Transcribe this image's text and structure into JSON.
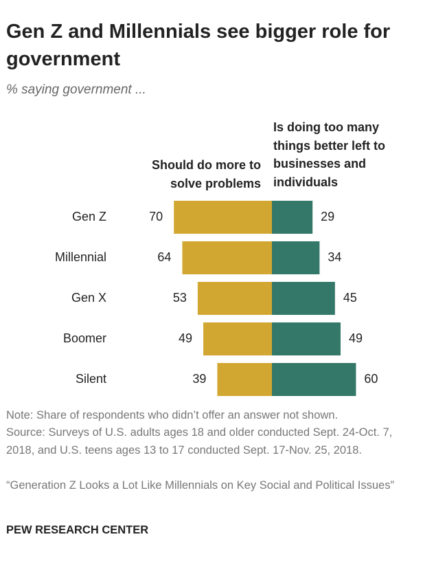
{
  "chart_data": {
    "type": "diverging_bar",
    "title": "Gen Z and Millennials see bigger role for government",
    "subtitle": "% saying government ...",
    "categories": [
      "Gen Z",
      "Millennial",
      "Gen X",
      "Boomer",
      "Silent"
    ],
    "series": [
      {
        "name": "Should do more to solve problems",
        "color": "#d2a731",
        "values": [
          70,
          64,
          53,
          49,
          39
        ]
      },
      {
        "name": "Is doing too many things better left to businesses and individuals",
        "color": "#337868",
        "values": [
          29,
          34,
          45,
          49,
          60
        ]
      }
    ],
    "notes": [
      "Note: Share of respondents who didn’t offer an answer not shown.",
      "Source: Surveys of U.S. adults ages 18 and older conducted Sept. 24-Oct. 7, 2018, and U.S. teens ages 13 to 17 conducted Sept. 17-Nov. 25, 2018.",
      "“Generation Z Looks a Lot Like Millennials on Key Social and Political Issues”"
    ],
    "source_label": "PEW RESEARCH CENTER"
  }
}
